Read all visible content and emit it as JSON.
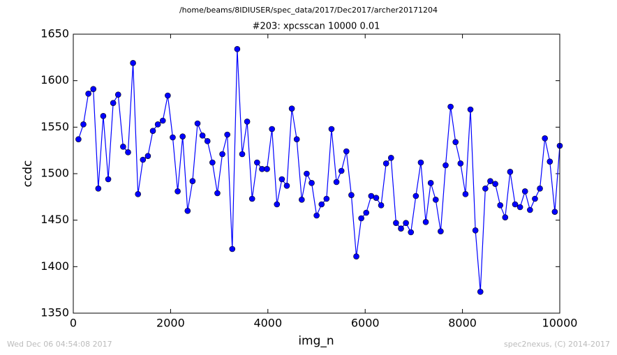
{
  "chart_data": {
    "type": "line",
    "suptitle": "/home/beams/8IDIUSER/spec_data/2017/Dec2017/archer20171204",
    "title": "#203: xpcsscan 10000 0.01",
    "xlabel": "img_n",
    "ylabel": "ccdc",
    "footer_left": "Wed Dec 06 04:54:08 2017",
    "footer_right": "spec2nexus, (C) 2014-2017",
    "x": [
      106,
      208,
      310,
      412,
      514,
      616,
      718,
      820,
      922,
      1024,
      1126,
      1228,
      1330,
      1432,
      1534,
      1636,
      1738,
      1840,
      1942,
      2044,
      2146,
      2248,
      2350,
      2452,
      2554,
      2656,
      2758,
      2860,
      2962,
      3064,
      3166,
      3268,
      3370,
      3472,
      3574,
      3676,
      3778,
      3880,
      3982,
      4084,
      4186,
      4288,
      4390,
      4492,
      4594,
      4696,
      4798,
      4900,
      5002,
      5104,
      5206,
      5308,
      5410,
      5512,
      5614,
      5716,
      5818,
      5920,
      6022,
      6124,
      6226,
      6328,
      6430,
      6532,
      6634,
      6736,
      6838,
      6940,
      7042,
      7144,
      7246,
      7348,
      7450,
      7552,
      7654,
      7756,
      7858,
      7960,
      8062,
      8164,
      8266,
      8368,
      8470,
      8572,
      8674,
      8776,
      8878,
      8980,
      9082,
      9184,
      9286,
      9388,
      9490,
      9592,
      9694,
      9796,
      9898,
      10000
    ],
    "series": [
      {
        "name": "ccdc",
        "color": "#0000ff",
        "values": [
          1537,
          1553,
          1586,
          1591,
          1484,
          1562,
          1494,
          1576,
          1585,
          1529,
          1523,
          1619,
          1478,
          1515,
          1519,
          1546,
          1553,
          1557,
          1584,
          1539,
          1481,
          1540,
          1460,
          1492,
          1554,
          1541,
          1535,
          1512,
          1479,
          1521,
          1542,
          1419,
          1634,
          1521,
          1556,
          1473,
          1512,
          1505,
          1505,
          1548,
          1467,
          1494,
          1487,
          1570,
          1537,
          1472,
          1500,
          1490,
          1455,
          1467,
          1473,
          1548,
          1491,
          1503,
          1524,
          1477,
          1411,
          1452,
          1458,
          1476,
          1474,
          1466,
          1511,
          1517,
          1447,
          1441,
          1447,
          1437,
          1476,
          1512,
          1448,
          1490,
          1472,
          1438,
          1509,
          1572,
          1534,
          1511,
          1478,
          1569,
          1439,
          1373,
          1484,
          1492,
          1489,
          1466,
          1453,
          1502,
          1467,
          1464,
          1481,
          1461,
          1473,
          1484,
          1538,
          1513,
          1459,
          1530
        ]
      }
    ],
    "xlim": [
      0,
      10000
    ],
    "xticks": [
      0,
      2000,
      4000,
      6000,
      8000,
      10000
    ],
    "ylim": [
      1350,
      1650
    ],
    "yticks": [
      1350,
      1400,
      1450,
      1500,
      1550,
      1600,
      1650
    ]
  }
}
